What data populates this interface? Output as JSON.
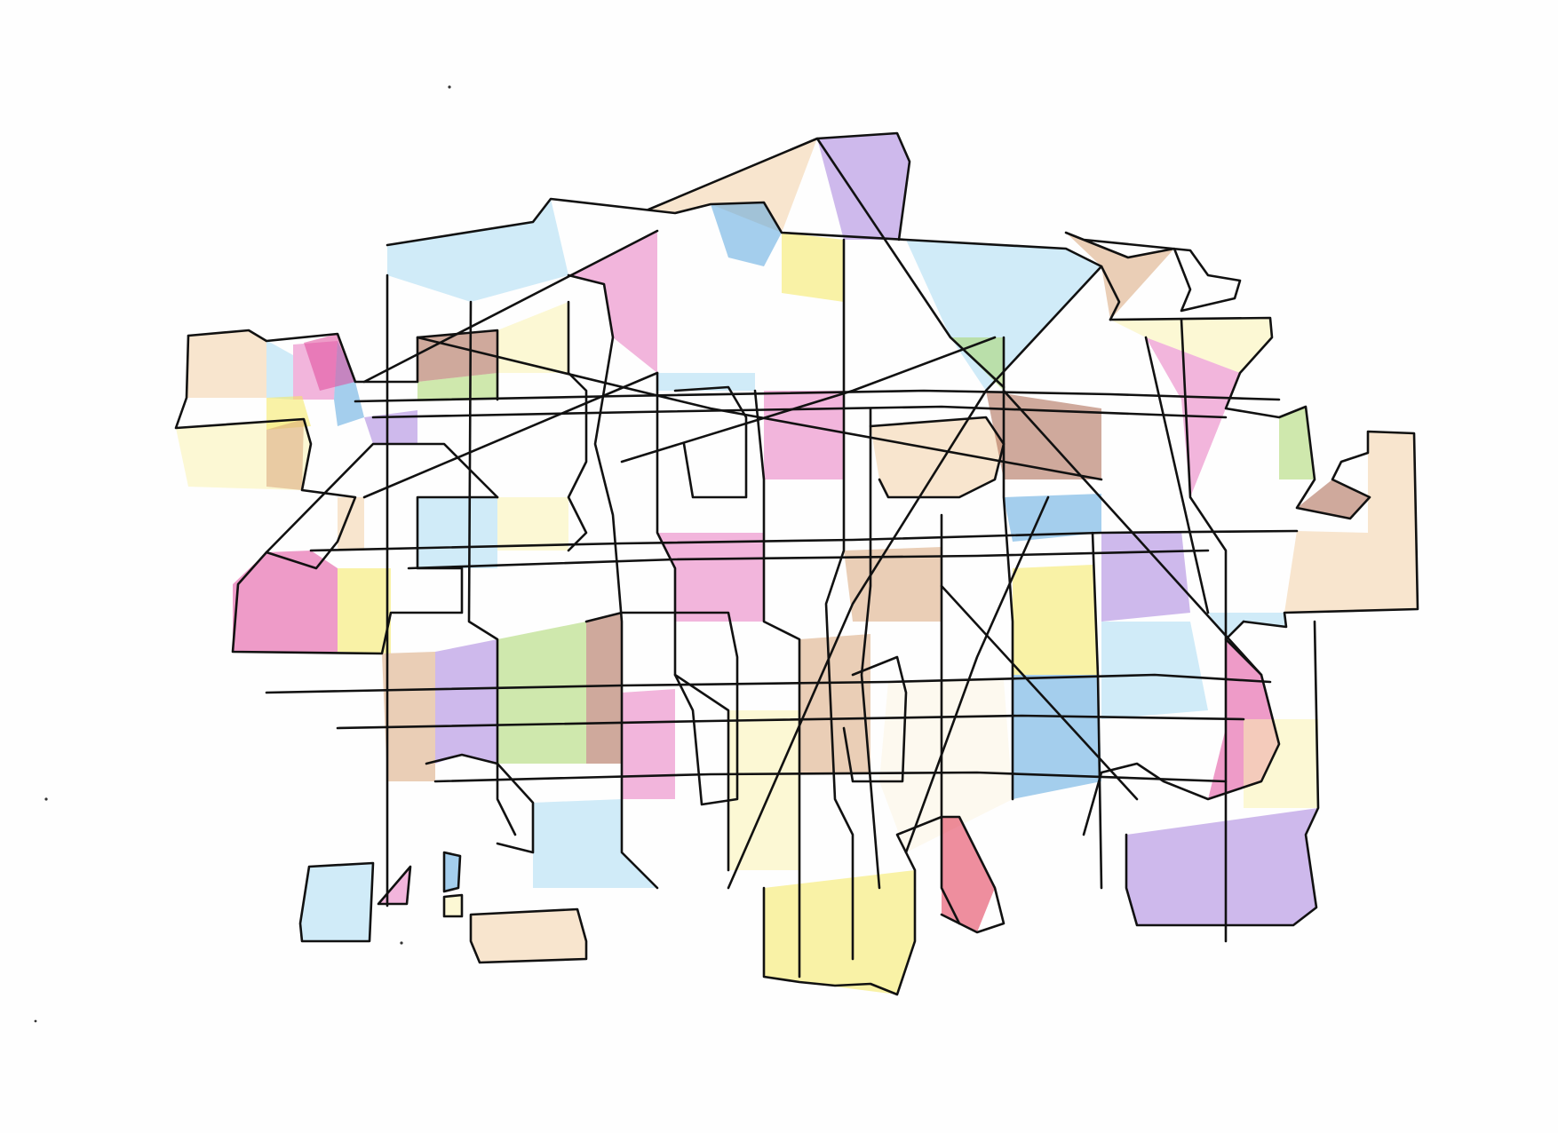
{
  "artwork": {
    "palette": {
      "ink": "#111111",
      "paper": "#fefefe",
      "pink": "#e879c0",
      "magenta": "#e0489a",
      "violet": "#a680dc",
      "blue": "#5aa6de",
      "light_blue": "#a9daf2",
      "yellow": "#f4e85c",
      "pale_yellow": "#faf3b0",
      "peach": "#f2cfa6",
      "tan": "#d8a67a",
      "brown": "#a8634a",
      "green": "#a7d66a",
      "red": "#e0314e",
      "cream": "#fbf4e2"
    },
    "regions": [
      {
        "color": "peach"
      },
      {
        "color": "light_blue"
      },
      {
        "color": "pink"
      },
      {
        "color": "blue"
      },
      {
        "color": "pale_yellow"
      },
      {
        "color": "magenta"
      },
      {
        "color": "yellow"
      },
      {
        "color": "tan"
      },
      {
        "color": "violet"
      },
      {
        "color": "green"
      },
      {
        "color": "brown"
      },
      {
        "color": "light_blue"
      },
      {
        "color": "pale_yellow"
      },
      {
        "color": "pink"
      },
      {
        "color": "peach"
      },
      {
        "color": "blue"
      },
      {
        "color": "yellow"
      },
      {
        "color": "violet"
      },
      {
        "color": "light_blue"
      },
      {
        "color": "tan"
      },
      {
        "color": "pale_yellow"
      },
      {
        "color": "pink"
      },
      {
        "color": "green"
      },
      {
        "color": "brown"
      },
      {
        "color": "peach"
      },
      {
        "color": "light_blue"
      },
      {
        "color": "magenta"
      },
      {
        "color": "pale_yellow"
      },
      {
        "color": "violet"
      },
      {
        "color": "blue"
      },
      {
        "color": "cream"
      },
      {
        "color": "yellow"
      },
      {
        "color": "red"
      },
      {
        "color": "tan"
      },
      {
        "color": "pink"
      },
      {
        "color": "light_blue"
      }
    ]
  }
}
